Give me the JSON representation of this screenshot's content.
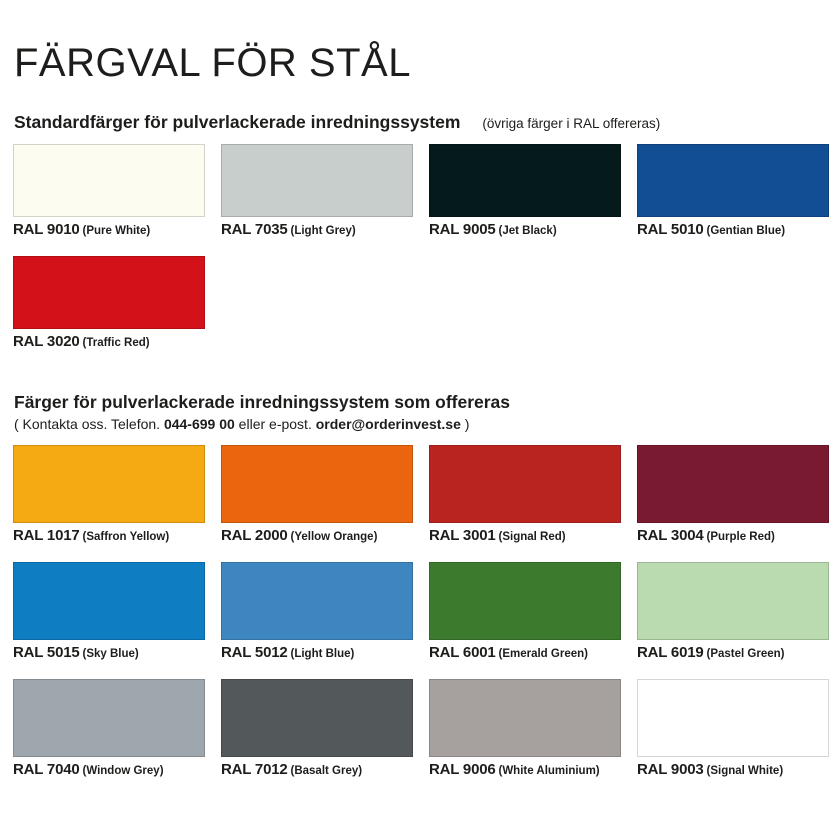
{
  "page": {
    "title": "FÄRGVAL FÖR STÅL"
  },
  "sections": [
    {
      "heading": "Standardfärger för pulverlackerade inredningssystem",
      "note": "(övriga färger i RAL offereras)",
      "swatches": [
        {
          "code": "RAL 9010",
          "name": "(Pure White)",
          "color": "#FDFCF0"
        },
        {
          "code": "RAL 7035",
          "name": "(Light Grey)",
          "color": "#C8CECB"
        },
        {
          "code": "RAL 9005",
          "name": "(Jet Black)",
          "color": "#041A1B"
        },
        {
          "code": "RAL 5010",
          "name": "(Gentian Blue)",
          "color": "#114E94"
        },
        {
          "code": "RAL 3020",
          "name": "(Traffic Red)",
          "color": "#D31118"
        }
      ]
    },
    {
      "heading": "Färger för pulverlackerade inredningssystem som offereras",
      "contact": {
        "prefix": "( Kontakta oss. Telefon. ",
        "phone": "044-699 00",
        "middle": " eller e-post. ",
        "email": "order@orderinvest.se",
        "suffix": " )"
      },
      "swatches": [
        {
          "code": "RAL 1017",
          "name": "(Saffron Yellow)",
          "color": "#F5A912"
        },
        {
          "code": "RAL 2000",
          "name": "(Yellow Orange)",
          "color": "#EA650D"
        },
        {
          "code": "RAL 3001",
          "name": "(Signal Red)",
          "color": "#B92421"
        },
        {
          "code": "RAL 3004",
          "name": "(Purple Red)",
          "color": "#7A1A30"
        },
        {
          "code": "RAL 5015",
          "name": "(Sky Blue)",
          "color": "#0E7DC2"
        },
        {
          "code": "RAL 5012",
          "name": "(Light Blue)",
          "color": "#3E86BF"
        },
        {
          "code": "RAL 6001",
          "name": "(Emerald Green)",
          "color": "#3C7B2D"
        },
        {
          "code": "RAL 6019",
          "name": "(Pastel Green)",
          "color": "#B9DBAF"
        },
        {
          "code": "RAL 7040",
          "name": "(Window Grey)",
          "color": "#9EA7AE"
        },
        {
          "code": "RAL 7012",
          "name": "(Basalt Grey)",
          "color": "#53585A"
        },
        {
          "code": "RAL 9006",
          "name": "(White Aluminium)",
          "color": "#A6A09E"
        },
        {
          "code": "RAL 9003",
          "name": "(Signal White)",
          "color": "#FFFFFF"
        }
      ]
    }
  ]
}
